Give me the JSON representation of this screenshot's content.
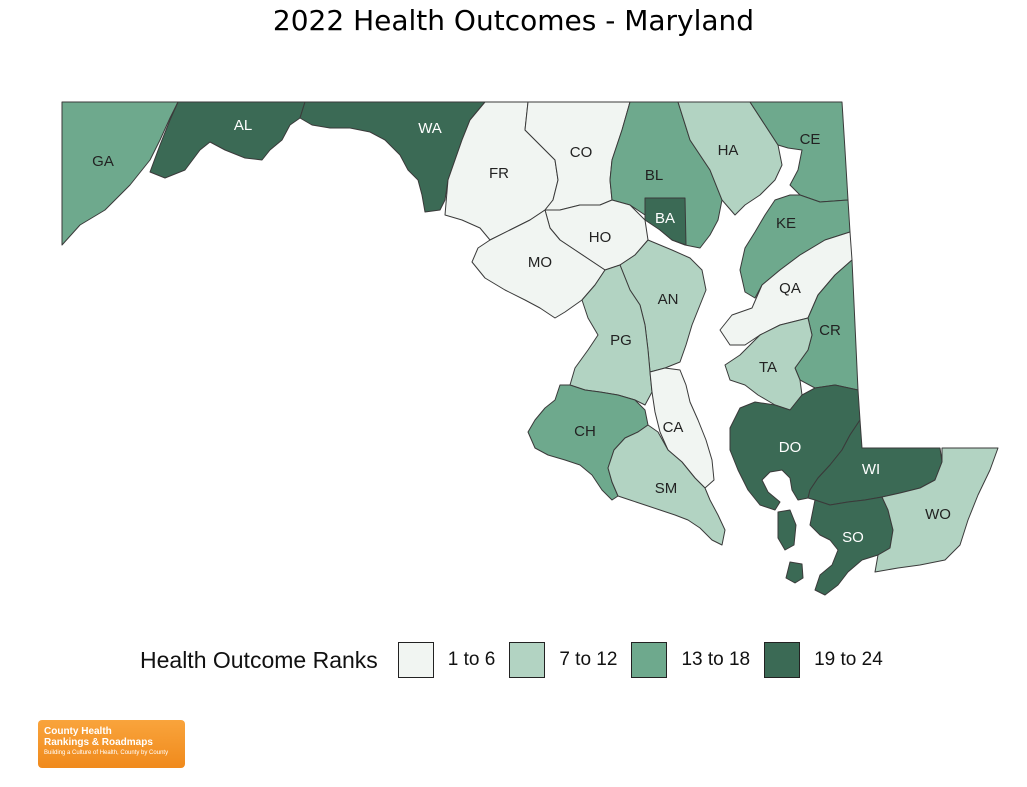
{
  "title": "2022 Health Outcomes - Maryland",
  "colors": {
    "rank_1_6": "#f1f5f2",
    "rank_7_12": "#b2d3c2",
    "rank_13_18": "#6ea98d",
    "rank_19_24": "#3b6a55",
    "label_dark": "#222222",
    "label_light": "#ffffff"
  },
  "counties": [
    {
      "id": "GA",
      "label": "GA",
      "class": "13 to 18"
    },
    {
      "id": "AL",
      "label": "AL",
      "class": "19 to 24"
    },
    {
      "id": "WA",
      "label": "WA",
      "class": "19 to 24"
    },
    {
      "id": "FR",
      "label": "FR",
      "class": "1 to 6"
    },
    {
      "id": "CO",
      "label": "CO",
      "class": "1 to 6"
    },
    {
      "id": "BL",
      "label": "BL",
      "class": "13 to 18"
    },
    {
      "id": "HA",
      "label": "HA",
      "class": "7 to 12"
    },
    {
      "id": "CE",
      "label": "CE",
      "class": "13 to 18"
    },
    {
      "id": "BA",
      "label": "BA",
      "class": "19 to 24"
    },
    {
      "id": "HO",
      "label": "HO",
      "class": "1 to 6"
    },
    {
      "id": "MO",
      "label": "MO",
      "class": "1 to 6"
    },
    {
      "id": "KE",
      "label": "KE",
      "class": "13 to 18"
    },
    {
      "id": "QA",
      "label": "QA",
      "class": "1 to 6"
    },
    {
      "id": "AN",
      "label": "AN",
      "class": "7 to 12"
    },
    {
      "id": "PG",
      "label": "PG",
      "class": "7 to 12"
    },
    {
      "id": "CR",
      "label": "CR",
      "class": "13 to 18"
    },
    {
      "id": "TA",
      "label": "TA",
      "class": "7 to 12"
    },
    {
      "id": "CA",
      "label": "CA",
      "class": "1 to 6"
    },
    {
      "id": "CH",
      "label": "CH",
      "class": "13 to 18"
    },
    {
      "id": "DO",
      "label": "DO",
      "class": "19 to 24"
    },
    {
      "id": "WI",
      "label": "WI",
      "class": "19 to 24"
    },
    {
      "id": "SM",
      "label": "SM",
      "class": "7 to 12"
    },
    {
      "id": "SO",
      "label": "SO",
      "class": "19 to 24"
    },
    {
      "id": "WO",
      "label": "WO",
      "class": "7 to 12"
    }
  ],
  "legend": {
    "title": "Health Outcome Ranks",
    "items": [
      {
        "label": "1 to 6",
        "color": "#f1f5f2"
      },
      {
        "label": "7 to 12",
        "color": "#b2d3c2"
      },
      {
        "label": "13 to 18",
        "color": "#6ea98d"
      },
      {
        "label": "19 to 24",
        "color": "#3b6a55"
      }
    ]
  },
  "logo": {
    "line1": "County Health",
    "line2": "Rankings & Roadmaps",
    "tagline": "Building a Culture of Health, County by County"
  }
}
